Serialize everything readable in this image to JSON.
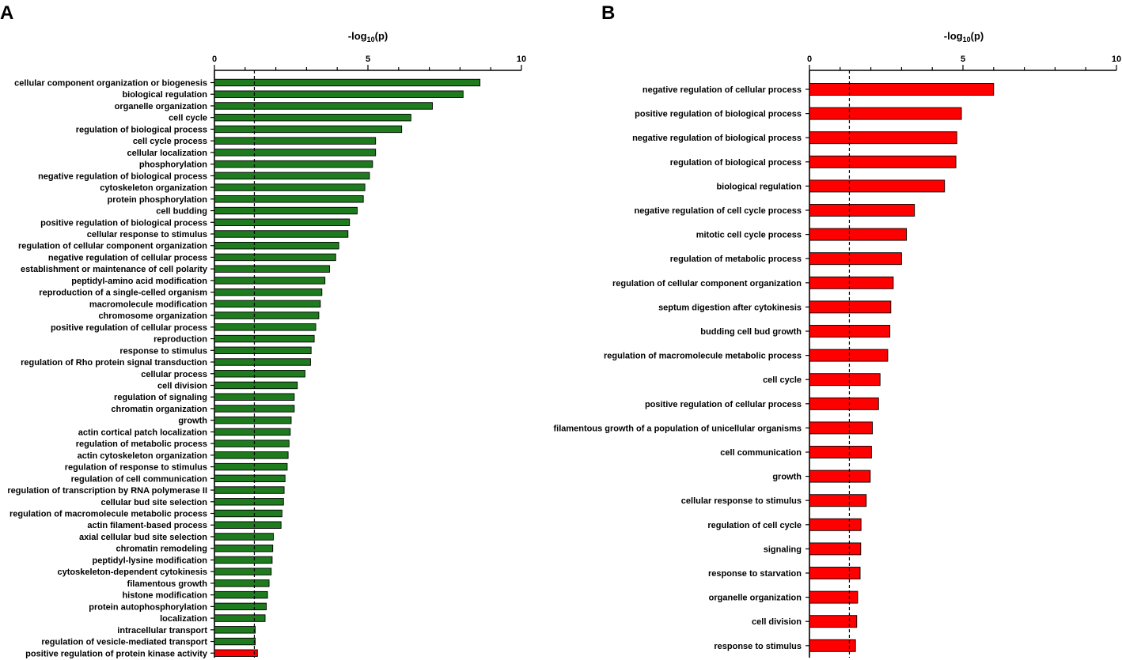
{
  "chart_data": [
    {
      "panel": "A",
      "type": "bar",
      "orientation": "horizontal",
      "xlabel": "-log",
      "xlabel_subscript": "10",
      "xlabel_suffix": "(p)",
      "xlim": [
        0,
        10
      ],
      "xticks": [
        0,
        5,
        10
      ],
      "threshold": 1.3,
      "default_color": "#1e7b1e",
      "categories": [
        "cellular component organization or biogenesis",
        "biological regulation",
        "organelle organization",
        "cell cycle",
        "regulation of biological process",
        "cell cycle process",
        "cellular localization",
        "phosphorylation",
        "negative regulation of biological process",
        "cytoskeleton organization",
        "protein phosphorylation",
        "cell budding",
        "positive regulation of biological process",
        "cellular response to stimulus",
        "regulation of cellular component organization",
        "negative regulation of cellular process",
        "establishment or maintenance of cell polarity",
        "peptidyl-amino acid modification",
        "reproduction of a single-celled organism",
        "macromolecule modification",
        "chromosome organization",
        "positive regulation of cellular process",
        "reproduction",
        "response to stimulus",
        "regulation of Rho protein signal transduction",
        "cellular process",
        "cell division",
        "regulation of signaling",
        "chromatin organization",
        "growth",
        "actin cortical patch localization",
        "regulation of metabolic process",
        "actin cytoskeleton organization",
        "regulation of response to stimulus",
        "regulation of cell communication",
        "regulation of transcription by RNA polymerase II",
        "cellular bud site selection",
        "regulation of macromolecule metabolic process",
        "actin filament-based process",
        "axial cellular bud site selection",
        "chromatin remodeling",
        "peptidyl-lysine modification",
        "cytoskeleton-dependent cytokinesis",
        "filamentous growth",
        "histone modification",
        "protein autophosphorylation",
        "localization",
        "intracellular transport",
        "regulation of vesicle-mediated transport",
        "positive regulation of protein kinase activity"
      ],
      "values": [
        8.65,
        8.1,
        7.1,
        6.4,
        6.1,
        5.25,
        5.25,
        5.15,
        5.05,
        4.9,
        4.85,
        4.65,
        4.4,
        4.35,
        4.05,
        3.95,
        3.75,
        3.6,
        3.5,
        3.45,
        3.4,
        3.3,
        3.25,
        3.15,
        3.13,
        2.95,
        2.7,
        2.6,
        2.6,
        2.5,
        2.47,
        2.43,
        2.4,
        2.37,
        2.3,
        2.27,
        2.25,
        2.2,
        2.17,
        1.92,
        1.9,
        1.88,
        1.85,
        1.78,
        1.73,
        1.69,
        1.65,
        1.33,
        1.33,
        1.4
      ],
      "colors": {
        "49": "#ff0000"
      }
    },
    {
      "panel": "B",
      "type": "bar",
      "orientation": "horizontal",
      "xlabel": "-log",
      "xlabel_subscript": "10",
      "xlabel_suffix": "(p)",
      "xlim": [
        0,
        10
      ],
      "xticks": [
        0,
        5,
        10
      ],
      "threshold": 1.3,
      "default_color": "#ff0000",
      "categories": [
        "negative regulation of cellular process",
        "positive regulation of biological process",
        "negative regulation of biological process",
        "regulation of biological process",
        "biological regulation",
        "negative regulation of cell cycle process",
        "mitotic cell cycle process",
        "regulation of metabolic process",
        "regulation of cellular component organization",
        "septum digestion after cytokinesis",
        "budding cell bud growth",
        "regulation of macromolecule metabolic process",
        "cell cycle",
        "positive regulation of cellular process",
        "filamentous growth of a population of unicellular organisms",
        "cell communication",
        "growth",
        "cellular response to stimulus",
        "regulation of cell cycle",
        "signaling",
        "response to starvation",
        "organelle organization",
        "cell division",
        "response to stimulus"
      ],
      "values": [
        6.0,
        4.95,
        4.8,
        4.77,
        4.4,
        3.42,
        3.16,
        3.0,
        2.73,
        2.65,
        2.62,
        2.55,
        2.3,
        2.25,
        2.05,
        2.02,
        1.98,
        1.85,
        1.68,
        1.67,
        1.65,
        1.57,
        1.54,
        1.5
      ],
      "colors": {}
    }
  ]
}
